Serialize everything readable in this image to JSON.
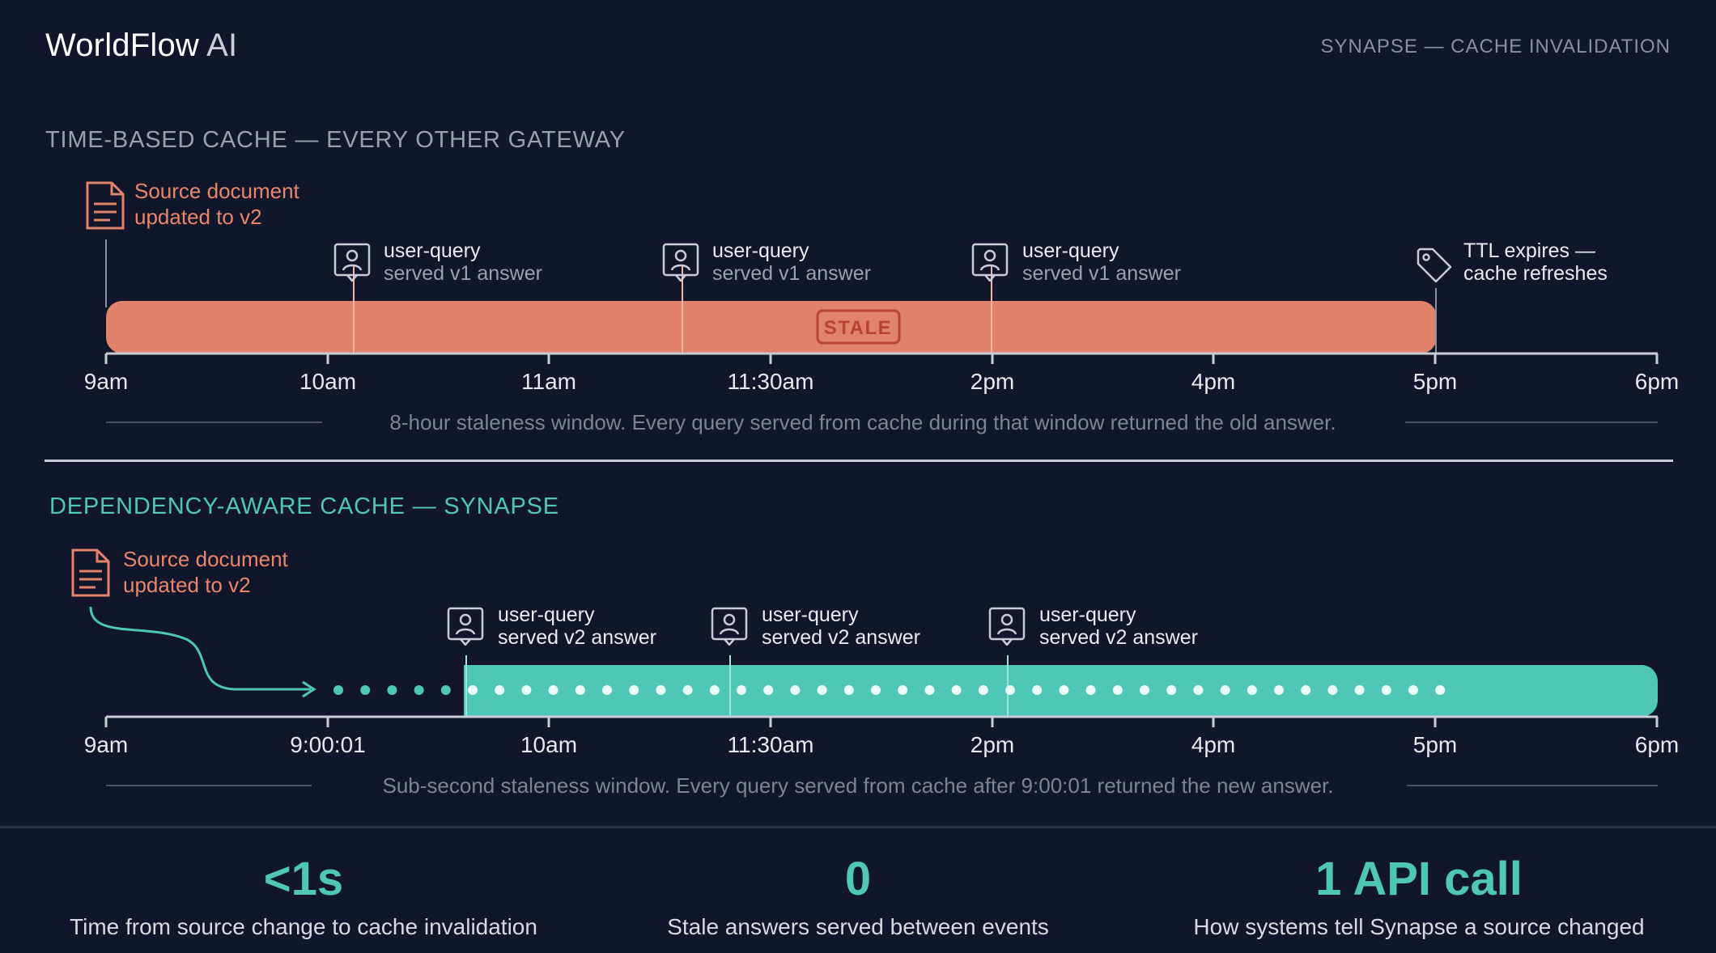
{
  "header": {
    "brand_main": "WorldFlow",
    "brand_suffix": "AI",
    "context": "SYNAPSE — CACHE INVALIDATION"
  },
  "time_based": {
    "title": "TIME-BASED CACHE — EVERY OTHER GATEWAY",
    "source_line1": "Source document",
    "source_line2": "updated to v2",
    "queries": [
      {
        "line1": "user-query",
        "line2": "served v1 answer"
      },
      {
        "line1": "user-query",
        "line2": "served v1 answer"
      },
      {
        "line1": "user-query",
        "line2": "served v1 answer"
      }
    ],
    "ttl_line1": "TTL expires —",
    "ttl_line2": "cache refreshes",
    "bar_badge": "STALE",
    "ticks": [
      "9am",
      "10am",
      "11am",
      "11:30am",
      "2pm",
      "4pm",
      "5pm",
      "6pm"
    ],
    "note": "8-hour staleness window. Every query served from cache during that window returned the old answer."
  },
  "dependency_aware": {
    "title": "DEPENDENCY-AWARE CACHE — SYNAPSE",
    "source_line1": "Source document",
    "source_line2": "updated to v2",
    "queries": [
      {
        "line1": "user-query",
        "line2": "served v2 answer"
      },
      {
        "line1": "user-query",
        "line2": "served v2 answer"
      },
      {
        "line1": "user-query",
        "line2": "served v2 answer"
      }
    ],
    "ticks": [
      "9am",
      "9:00:01",
      "10am",
      "11:30am",
      "2pm",
      "4pm",
      "5pm",
      "6pm"
    ],
    "note": "Sub-second staleness window. Every query served from cache after 9:00:01 returned the new answer."
  },
  "stats": [
    {
      "value": "<1s",
      "caption": "Time from source change to cache invalidation"
    },
    {
      "value": "0",
      "caption": "Stale answers served between events"
    },
    {
      "value": "1 API call",
      "caption": "How systems tell Synapse a source changed"
    }
  ],
  "colors": {
    "background": "#12162a",
    "stale": "#e0836a",
    "fresh": "#4ec7b6",
    "muted": "#9aa0b2"
  }
}
